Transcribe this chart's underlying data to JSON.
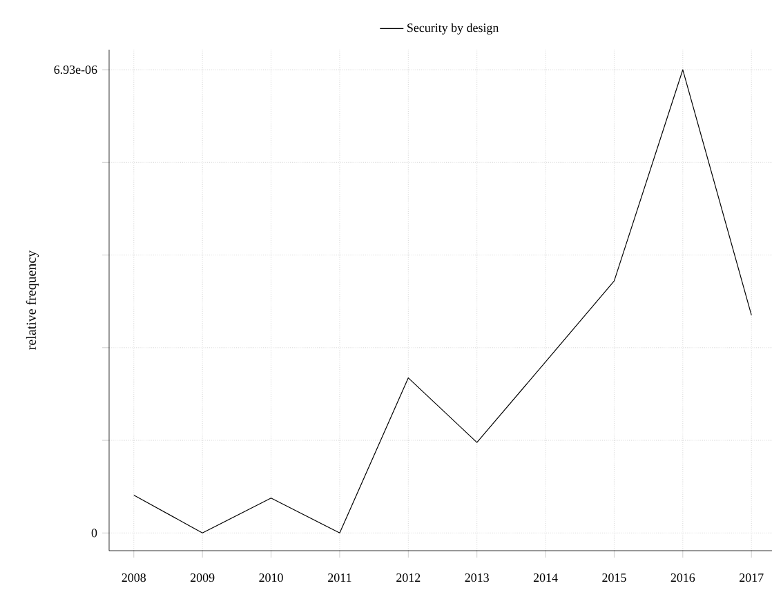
{
  "chart_data": {
    "type": "line",
    "ylabel": "relative frequency",
    "x": [
      2008,
      2009,
      2010,
      2011,
      2012,
      2013,
      2014,
      2015,
      2016,
      2017
    ],
    "series": [
      {
        "name": "Security by design",
        "color": "#000000",
        "values": [
          5.67e-07,
          0,
          5.23e-07,
          0,
          2.32e-06,
          1.355e-06,
          2.56e-06,
          3.77e-06,
          6.93e-06,
          3.26e-06
        ]
      }
    ],
    "xlim": [
      2007.64,
      2017.3
    ],
    "ylim": [
      -2.65e-07,
      7.23e-06
    ],
    "xticks": [
      2008,
      2009,
      2010,
      2011,
      2012,
      2013,
      2014,
      2015,
      2016,
      2017
    ],
    "yticks": [
      {
        "value": 0,
        "label": "0"
      },
      {
        "value": 1.386e-06,
        "label": null
      },
      {
        "value": 2.772e-06,
        "label": null
      },
      {
        "value": 4.158e-06,
        "label": null
      },
      {
        "value": 5.544e-06,
        "label": null
      },
      {
        "value": 6.93e-06,
        "label": "6.93e-06"
      }
    ],
    "grid": true,
    "legend": "top",
    "line_style": "solid",
    "marker": "none"
  }
}
